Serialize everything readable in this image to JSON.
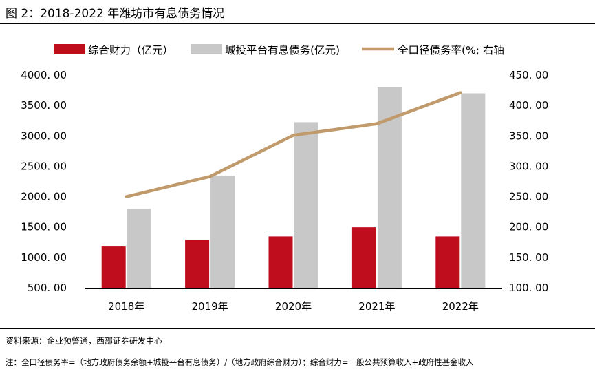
{
  "title": "图 2：2018-2022 年潍坊市有息债务情况",
  "source": "资料来源：企业预警通，西部证券研发中心",
  "note": "注：全口径债务率=（地方政府债务余额+城投平台有息债务）/（地方政府综合财力）；综合财力=一般公共预算收入+政府性基金收入",
  "colors": {
    "revenue": "#c00d1e",
    "debt": "#c8c8c8",
    "ratio": "#c09a6b"
  },
  "chart_data": {
    "type": "bar",
    "categories": [
      "2018年",
      "2019年",
      "2020年",
      "2021年",
      "2022年"
    ],
    "series": [
      {
        "name": "综合财力（亿元）",
        "type": "bar",
        "axis": "left",
        "values": [
          1190,
          1290,
          1345,
          1495,
          1345
        ]
      },
      {
        "name": "城投平台有息债务(亿元)",
        "type": "bar",
        "axis": "left",
        "values": [
          1800,
          2345,
          3225,
          3800,
          3700
        ]
      },
      {
        "name": "全口径债务率(%; 右轴",
        "type": "line",
        "axis": "right",
        "values": [
          250,
          283,
          351,
          370,
          421
        ]
      }
    ],
    "y_left": {
      "range": [
        500,
        4000
      ],
      "ticks": [
        500,
        1000,
        1500,
        2000,
        2500,
        3000,
        3500,
        4000
      ],
      "tick_labels": [
        "500. 00",
        "1000. 00",
        "1500. 00",
        "2000. 00",
        "2500. 00",
        "3000. 00",
        "3500. 00",
        "4000. 00"
      ]
    },
    "y_right": {
      "range": [
        100,
        450
      ],
      "ticks": [
        100,
        150,
        200,
        250,
        300,
        350,
        400,
        450
      ],
      "tick_labels": [
        "100. 00",
        "150. 00",
        "200. 00",
        "250. 00",
        "300. 00",
        "350. 00",
        "400. 00",
        "450. 00"
      ]
    },
    "legend_position": "top",
    "grid": false
  }
}
